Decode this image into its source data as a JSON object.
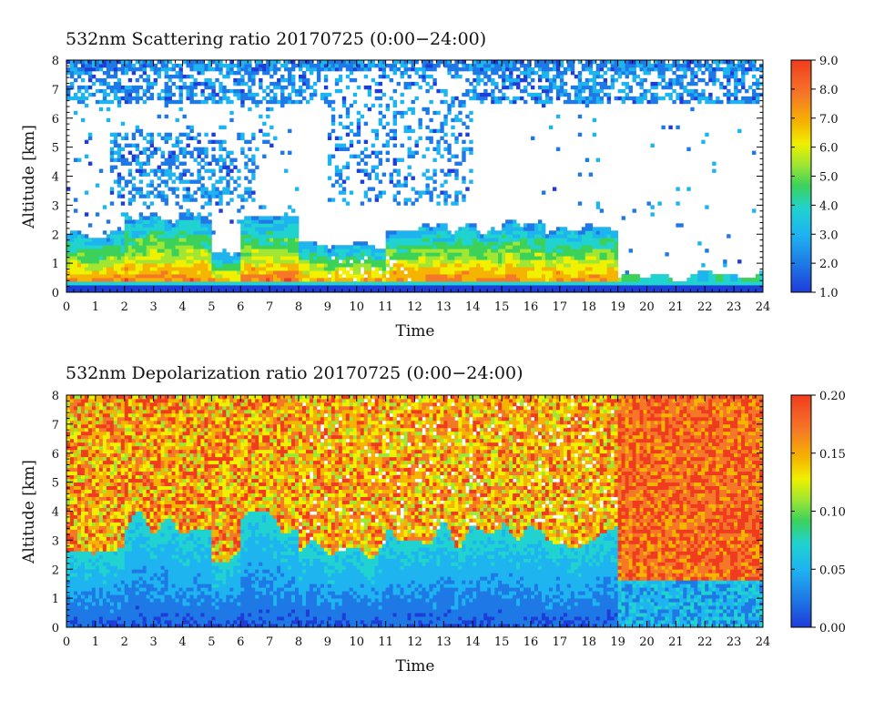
{
  "chart_data": [
    {
      "type": "heatmap",
      "title": "532nm Scattering ratio  20170725 (0:00−24:00)",
      "xlabel": "Time",
      "ylabel": "Altitude [km]",
      "xlim": [
        0,
        24
      ],
      "ylim": [
        0,
        8
      ],
      "x_ticks": [
        "0",
        "1",
        "2",
        "3",
        "4",
        "5",
        "6",
        "7",
        "8",
        "9",
        "10",
        "11",
        "12",
        "13",
        "14",
        "15",
        "16",
        "17",
        "18",
        "19",
        "20",
        "21",
        "22",
        "23",
        "24"
      ],
      "y_ticks": [
        "0",
        "1",
        "2",
        "3",
        "4",
        "5",
        "6",
        "7",
        "8"
      ],
      "colorbar": {
        "range": [
          1.0,
          9.0
        ],
        "ticks": [
          "1.0",
          "2.0",
          "3.0",
          "4.0",
          "5.0",
          "6.0",
          "7.0",
          "8.0",
          "9.0"
        ]
      },
      "colorscale": [
        "#1e3cd8",
        "#1e78e6",
        "#1eb4f0",
        "#20d2d0",
        "#3cd25a",
        "#a0e632",
        "#f0f000",
        "#f5b400",
        "#f57828",
        "#f03c1e"
      ]
    },
    {
      "type": "heatmap",
      "title": "532nm Depolarization ratio  20170725 (0:00−24:00)",
      "xlabel": "Time",
      "ylabel": "Altitude [km]",
      "xlim": [
        0,
        24
      ],
      "ylim": [
        0,
        8
      ],
      "x_ticks": [
        "0",
        "1",
        "2",
        "3",
        "4",
        "5",
        "6",
        "7",
        "8",
        "9",
        "10",
        "11",
        "12",
        "13",
        "14",
        "15",
        "16",
        "17",
        "18",
        "19",
        "20",
        "21",
        "22",
        "23",
        "24"
      ],
      "y_ticks": [
        "0",
        "1",
        "2",
        "3",
        "4",
        "5",
        "6",
        "7",
        "8"
      ],
      "colorbar": {
        "range": [
          0.0,
          0.2
        ],
        "ticks": [
          "0.00",
          "0.05",
          "0.10",
          "0.15",
          "0.20"
        ]
      },
      "colorscale": [
        "#1e3cd8",
        "#1e78e6",
        "#1eb4f0",
        "#20d2d0",
        "#3cd25a",
        "#a0e632",
        "#f0f000",
        "#f5b400",
        "#f57828",
        "#f03c1e"
      ]
    }
  ]
}
